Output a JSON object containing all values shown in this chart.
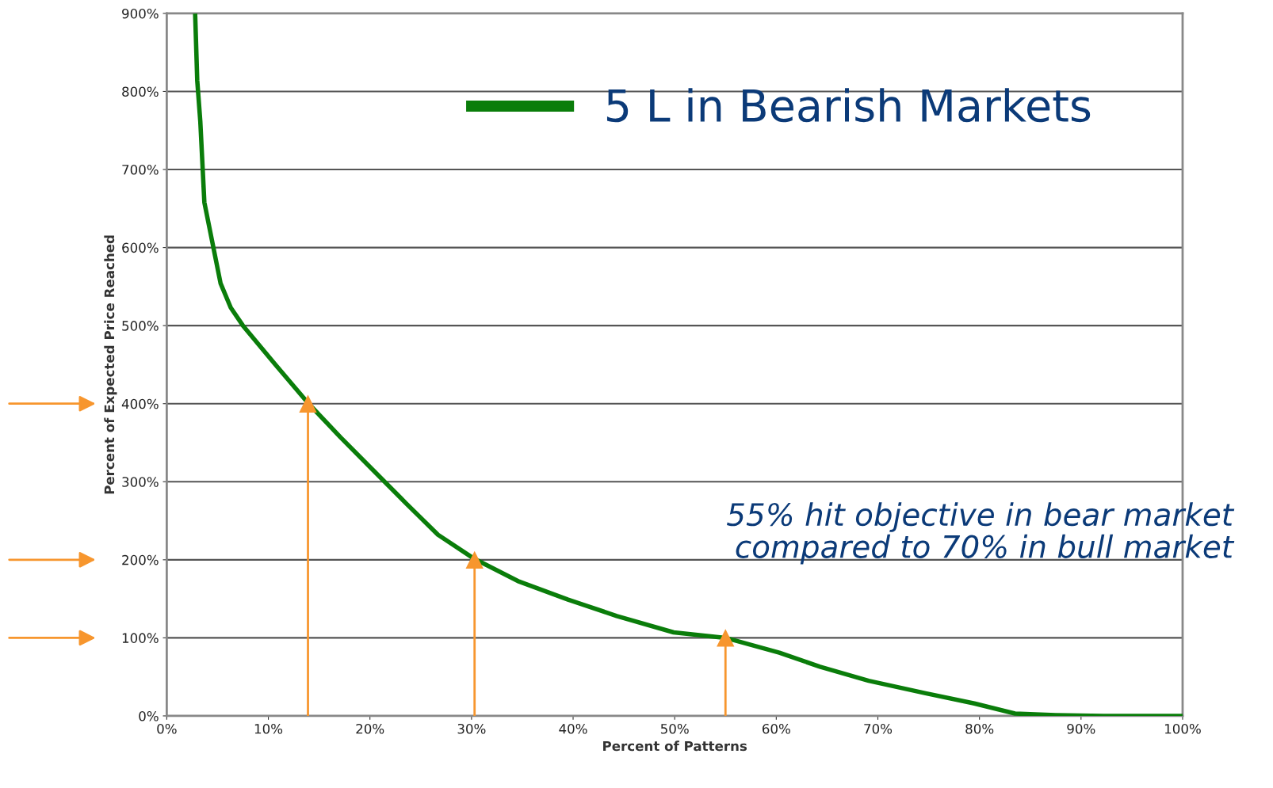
{
  "chart_data": {
    "type": "line",
    "xlabel": "Percent of Patterns",
    "ylabel": "Percent of Expected Price Reached",
    "xlim": [
      0,
      100
    ],
    "ylim": [
      0,
      900
    ],
    "xticks": [
      {
        "value": 0,
        "label": "0%"
      },
      {
        "value": 10,
        "label": "10%"
      },
      {
        "value": 20,
        "label": "20%"
      },
      {
        "value": 30,
        "label": "30%"
      },
      {
        "value": 40,
        "label": "40%"
      },
      {
        "value": 50,
        "label": "50%"
      },
      {
        "value": 60,
        "label": "60%"
      },
      {
        "value": 70,
        "label": "70%"
      },
      {
        "value": 80,
        "label": "80%"
      },
      {
        "value": 90,
        "label": "90%"
      },
      {
        "value": 100,
        "label": "100%"
      }
    ],
    "yticks": [
      {
        "value": 0,
        "label": "0%"
      },
      {
        "value": 100,
        "label": "100%"
      },
      {
        "value": 200,
        "label": "200%"
      },
      {
        "value": 300,
        "label": "300%"
      },
      {
        "value": 400,
        "label": "400%"
      },
      {
        "value": 500,
        "label": "500%"
      },
      {
        "value": 600,
        "label": "600%"
      },
      {
        "value": 700,
        "label": "700%"
      },
      {
        "value": 800,
        "label": "800%"
      },
      {
        "value": 900,
        "label": "900%"
      }
    ],
    "grid": "y",
    "legend": "top right",
    "marker": "none",
    "line_style": "solid",
    "series": [
      {
        "name": "5 L in Bearish Markets",
        "color": "#0a7d0a",
        "x": [
          2.8,
          3.0,
          3.3,
          3.7,
          4.5,
          5.3,
          6.3,
          7.5,
          10.7,
          13.9,
          17.1,
          20.3,
          23.5,
          26.7,
          30.3,
          34.7,
          39.5,
          44.3,
          49.9,
          55,
          60.3,
          64.3,
          69.1,
          74.7,
          79.5,
          83.5,
          87.5,
          92.2,
          100
        ],
        "values": [
          897,
          814,
          762,
          658,
          606,
          554,
          523,
          500,
          450,
          401,
          357,
          315,
          273,
          232,
          201,
          172,
          149,
          128,
          107,
          100,
          81,
          63,
          45,
          29,
          16,
          3,
          1,
          0,
          0
        ]
      },
      {
        "type": "lollipop",
        "color": "#f7962e",
        "marker": "triangle",
        "x": [
          13.9,
          30.3,
          55
        ],
        "values": [
          400,
          200,
          100
        ]
      }
    ],
    "annotations": [
      "55% hit objective in bear market\ncompared to 70% in bull market"
    ]
  }
}
